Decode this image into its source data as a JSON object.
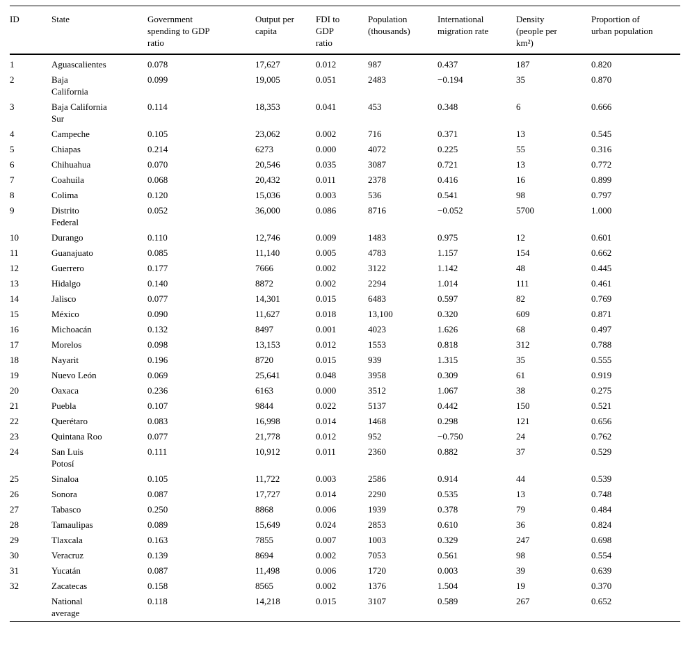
{
  "table": {
    "headers": [
      "ID",
      "State",
      "Government\nspending to GDP\nratio",
      "Output per\ncapita",
      "FDI to\nGDP\nratio",
      "Population\n(thousands)",
      "International\nmigration rate",
      "Density\n(people per\nkm²)",
      "Proportion of\nurban population"
    ],
    "column_keys": [
      "id",
      "state",
      "gov-spending-gdp-ratio",
      "output-per-capita",
      "fdi-gdp-ratio",
      "population-thousands",
      "intl-migration-rate",
      "density",
      "urban-proportion"
    ],
    "rows": [
      [
        "1",
        "Aguascalientes",
        "0.078",
        "17,627",
        "0.012",
        "987",
        "0.437",
        "187",
        "0.820"
      ],
      [
        "2",
        "Baja\nCalifornia",
        "0.099",
        "19,005",
        "0.051",
        "2483",
        "−0.194",
        "35",
        "0.870"
      ],
      [
        "3",
        "Baja California\nSur",
        "0.114",
        "18,353",
        "0.041",
        "453",
        "0.348",
        "6",
        "0.666"
      ],
      [
        "4",
        "Campeche",
        "0.105",
        "23,062",
        "0.002",
        "716",
        "0.371",
        "13",
        "0.545"
      ],
      [
        "5",
        "Chiapas",
        "0.214",
        "6273",
        "0.000",
        "4072",
        "0.225",
        "55",
        "0.316"
      ],
      [
        "6",
        "Chihuahua",
        "0.070",
        "20,546",
        "0.035",
        "3087",
        "0.721",
        "13",
        "0.772"
      ],
      [
        "7",
        "Coahuila",
        "0.068",
        "20,432",
        "0.011",
        "2378",
        "0.416",
        "16",
        "0.899"
      ],
      [
        "8",
        "Colima",
        "0.120",
        "15,036",
        "0.003",
        "536",
        "0.541",
        "98",
        "0.797"
      ],
      [
        "9",
        "Distrito\nFederal",
        "0.052",
        "36,000",
        "0.086",
        "8716",
        "−0.052",
        "5700",
        "1.000"
      ],
      [
        "10",
        "Durango",
        "0.110",
        "12,746",
        "0.009",
        "1483",
        "0.975",
        "12",
        "0.601"
      ],
      [
        "11",
        "Guanajuato",
        "0.085",
        "11,140",
        "0.005",
        "4783",
        "1.157",
        "154",
        "0.662"
      ],
      [
        "12",
        "Guerrero",
        "0.177",
        "7666",
        "0.002",
        "3122",
        "1.142",
        "48",
        "0.445"
      ],
      [
        "13",
        "Hidalgo",
        "0.140",
        "8872",
        "0.002",
        "2294",
        "1.014",
        "111",
        "0.461"
      ],
      [
        "14",
        "Jalisco",
        "0.077",
        "14,301",
        "0.015",
        "6483",
        "0.597",
        "82",
        "0.769"
      ],
      [
        "15",
        "México",
        "0.090",
        "11,627",
        "0.018",
        "13,100",
        "0.320",
        "609",
        "0.871"
      ],
      [
        "16",
        "Michoacán",
        "0.132",
        "8497",
        "0.001",
        "4023",
        "1.626",
        "68",
        "0.497"
      ],
      [
        "17",
        "Morelos",
        "0.098",
        "13,153",
        "0.012",
        "1553",
        "0.818",
        "312",
        "0.788"
      ],
      [
        "18",
        "Nayarit",
        "0.196",
        "8720",
        "0.015",
        "939",
        "1.315",
        "35",
        "0.555"
      ],
      [
        "19",
        "Nuevo León",
        "0.069",
        "25,641",
        "0.048",
        "3958",
        "0.309",
        "61",
        "0.919"
      ],
      [
        "20",
        "Oaxaca",
        "0.236",
        "6163",
        "0.000",
        "3512",
        "1.067",
        "38",
        "0.275"
      ],
      [
        "21",
        "Puebla",
        "0.107",
        "9844",
        "0.022",
        "5137",
        "0.442",
        "150",
        "0.521"
      ],
      [
        "22",
        "Querétaro",
        "0.083",
        "16,998",
        "0.014",
        "1468",
        "0.298",
        "121",
        "0.656"
      ],
      [
        "23",
        "Quintana Roo",
        "0.077",
        "21,778",
        "0.012",
        "952",
        "−0.750",
        "24",
        "0.762"
      ],
      [
        "24",
        "San Luis\nPotosí",
        "0.111",
        "10,912",
        "0.011",
        "2360",
        "0.882",
        "37",
        "0.529"
      ],
      [
        "25",
        "Sinaloa",
        "0.105",
        "11,722",
        "0.003",
        "2586",
        "0.914",
        "44",
        "0.539"
      ],
      [
        "26",
        "Sonora",
        "0.087",
        "17,727",
        "0.014",
        "2290",
        "0.535",
        "13",
        "0.748"
      ],
      [
        "27",
        "Tabasco",
        "0.250",
        "8868",
        "0.006",
        "1939",
        "0.378",
        "79",
        "0.484"
      ],
      [
        "28",
        "Tamaulipas",
        "0.089",
        "15,649",
        "0.024",
        "2853",
        "0.610",
        "36",
        "0.824"
      ],
      [
        "29",
        "Tlaxcala",
        "0.163",
        "7855",
        "0.007",
        "1003",
        "0.329",
        "247",
        "0.698"
      ],
      [
        "30",
        "Veracruz",
        "0.139",
        "8694",
        "0.002",
        "7053",
        "0.561",
        "98",
        "0.554"
      ],
      [
        "31",
        "Yucatán",
        "0.087",
        "11,498",
        "0.006",
        "1720",
        "0.003",
        "39",
        "0.639"
      ],
      [
        "32",
        "Zacatecas",
        "0.158",
        "8565",
        "0.002",
        "1376",
        "1.504",
        "19",
        "0.370"
      ],
      [
        "",
        "National\naverage",
        "0.118",
        "14,218",
        "0.015",
        "3107",
        "0.589",
        "267",
        "0.652"
      ]
    ]
  }
}
